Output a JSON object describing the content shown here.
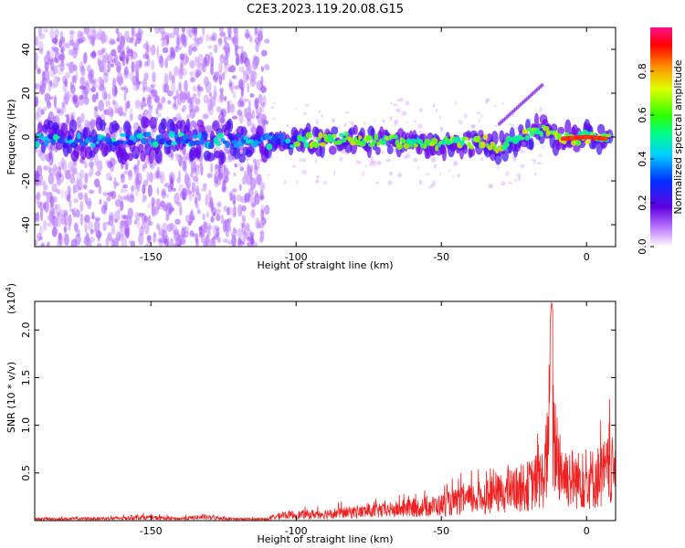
{
  "figure_title": "C2E3.2023.119.20.08.G15",
  "chart_data": [
    {
      "type": "heatmap",
      "title": "C2E3.2023.119.20.08.G15",
      "xlabel": "Height of straight line (km)",
      "ylabel": "Frequency (Hz)",
      "xlim": [
        -190,
        10
      ],
      "ylim": [
        -50,
        50
      ],
      "xticks": [
        -150,
        -100,
        -50,
        0
      ],
      "yticks": [
        -40,
        -20,
        0,
        20,
        40
      ],
      "colorbar": {
        "label": "Normalized spectral amplitude",
        "range": [
          0,
          1
        ],
        "ticks": [
          "0.0",
          "0.2",
          "0.4",
          "0.6",
          "0.8"
        ],
        "colormap": "rainbow (purple-blue-cyan-green-yellow-red-pink)"
      },
      "ridge": [
        {
          "x": -190,
          "y": -2
        },
        {
          "x": -150,
          "y": -1
        },
        {
          "x": -110,
          "y": -2
        },
        {
          "x": -80,
          "y": -1
        },
        {
          "x": -50,
          "y": -3
        },
        {
          "x": -35,
          "y": -2
        },
        {
          "x": -30,
          "y": -5
        },
        {
          "x": -15,
          "y": 4
        },
        {
          "x": -10,
          "y": -1
        },
        {
          "x": 0,
          "y": 0
        },
        {
          "x": 8,
          "y": -1
        }
      ],
      "grid": false
    },
    {
      "type": "line",
      "xlabel": "Height of straight line (km)",
      "ylabel": "SNR (10 * v/v)",
      "y_scale_note": "(x10",
      "y_scale_exp": "4",
      "y_scale_close": ")",
      "xlim": [
        -190,
        10
      ],
      "ylim": [
        0,
        23000
      ],
      "xticks": [
        -150,
        -100,
        -50,
        0
      ],
      "yticks": [
        {
          "value": 5000,
          "label": "0.5"
        },
        {
          "value": 10000,
          "label": "1.0"
        },
        {
          "value": 15000,
          "label": "1.5"
        },
        {
          "value": 20000,
          "label": "2.0"
        }
      ],
      "series": [
        {
          "color": "#ee2222",
          "envelope": [
            {
              "x": -190,
              "y": 400
            },
            {
              "x": -160,
              "y": 600
            },
            {
              "x": -155,
              "y": 900
            },
            {
              "x": -140,
              "y": 500
            },
            {
              "x": -133,
              "y": 900
            },
            {
              "x": -120,
              "y": 400
            },
            {
              "x": -110,
              "y": 400
            },
            {
              "x": -105,
              "y": 1400
            },
            {
              "x": -95,
              "y": 1600
            },
            {
              "x": -85,
              "y": 2000
            },
            {
              "x": -70,
              "y": 2600
            },
            {
              "x": -60,
              "y": 3200
            },
            {
              "x": -50,
              "y": 4000
            },
            {
              "x": -40,
              "y": 5500
            },
            {
              "x": -30,
              "y": 7000
            },
            {
              "x": -20,
              "y": 9000
            },
            {
              "x": -15,
              "y": 11000
            },
            {
              "x": -12,
              "y": 23000
            },
            {
              "x": -8,
              "y": 12000
            },
            {
              "x": -3,
              "y": 10500
            },
            {
              "x": 3,
              "y": 11000
            },
            {
              "x": 8,
              "y": 13000
            },
            {
              "x": 10,
              "y": 12000
            }
          ]
        }
      ]
    }
  ]
}
